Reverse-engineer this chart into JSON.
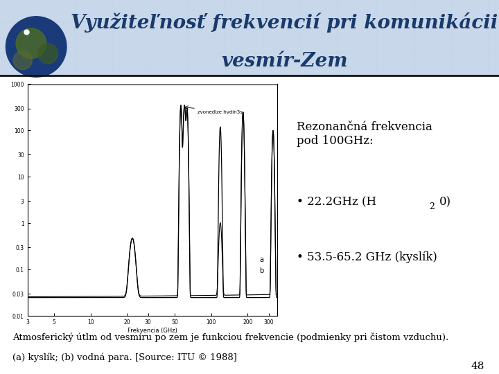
{
  "title_line1": "Využiteľnosť frekvencií pri komunikácii",
  "title_line2": "vesmír-Zem",
  "title_color": "#1a3a6b",
  "title_fontsize": 20,
  "title_style": "italic",
  "header_bg_color": "#c8d8ea",
  "bg_color": "#ffffff",
  "resonance_title": "Rezonančná frekvencia\npod 100GHz:",
  "bullet2": "• 53.5-65.2 GHz (kyslík)",
  "footer1": "Atmosferický útlm od vesmíru po zem je funkciou frekvencie (podmienky pri čistom vzduchu).",
  "footer2": "(a) kyslík; (b) vodná para. [Source: ITU © 1988]",
  "page_number": "48",
  "text_color": "#000000",
  "resonance_fontsize": 12,
  "bullet_fontsize": 12,
  "footer_fontsize": 9.5,
  "separator_color": "#111111",
  "ytick_labels": [
    "0.01",
    "0.03",
    "0.1",
    "0.3",
    "1",
    "3",
    "10",
    "30",
    "100",
    "300",
    "1000"
  ],
  "ytick_vals": [
    0.01,
    0.03,
    0.1,
    0.3,
    1,
    3,
    10,
    30,
    100,
    300,
    1000
  ],
  "xtick_vals": [
    3,
    5,
    10,
    20,
    30,
    50,
    100,
    200,
    300
  ],
  "xtick_labels": [
    "3",
    "5",
    "10",
    "20",
    "30",
    "50",
    "100",
    "200",
    "300"
  ]
}
